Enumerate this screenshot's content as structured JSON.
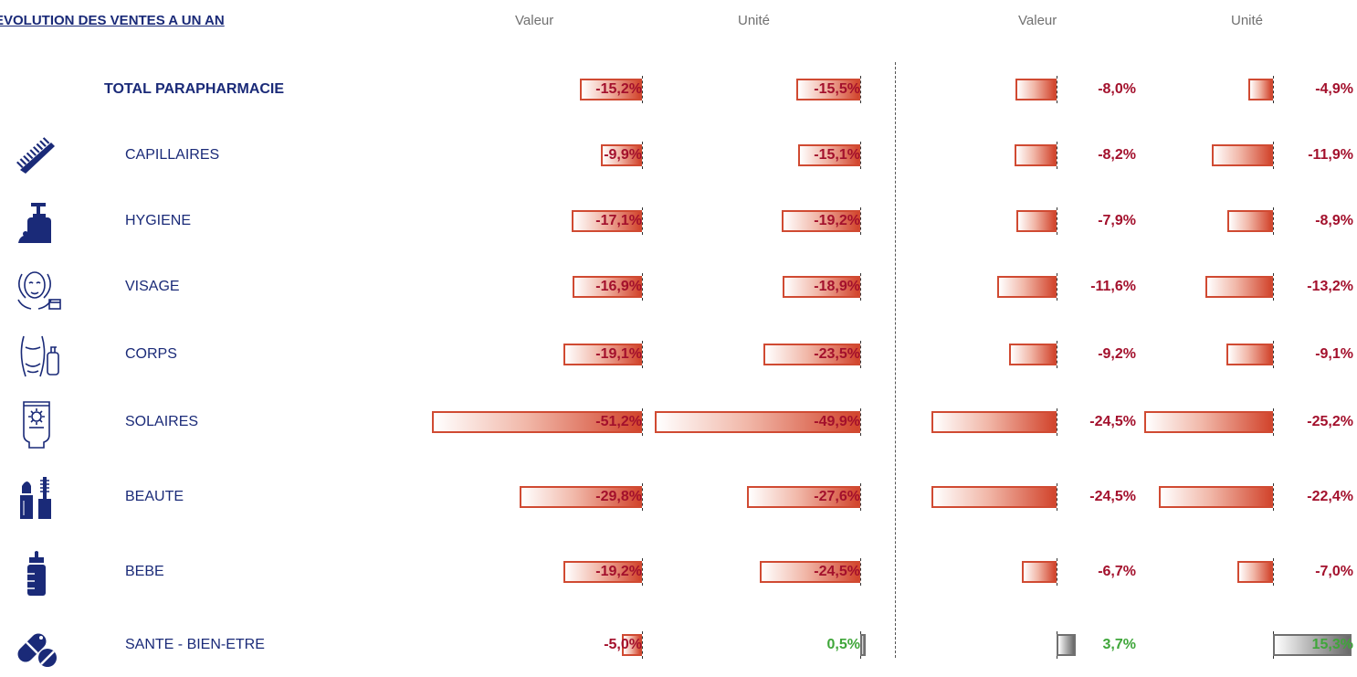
{
  "title": "EVOLUTION DES VENTES A UN AN",
  "columns": [
    "Valeur",
    "Unité",
    "Valeur",
    "Unité"
  ],
  "colors": {
    "label": "#1a2a78",
    "negative_value": "#a3102c",
    "positive_value": "#3fa63a",
    "negative_bar": "#d2452d",
    "positive_bar": "#6a6a6a"
  },
  "chart_data": {
    "type": "bar",
    "orientation": "horizontal",
    "categories": [
      "TOTAL PARAPHARMACIE",
      "CAPILLAIRES",
      "HYGIENE",
      "VISAGE",
      "CORPS",
      "SOLAIRES",
      "BEAUTE",
      "BEBE",
      "SANTE - BIEN-ETRE"
    ],
    "category_icons": [
      "",
      "comb-icon",
      "soap-dispenser-icon",
      "face-cream-icon",
      "body-lotion-icon",
      "sunscreen-icon",
      "lipstick-mascara-icon",
      "baby-bottle-icon",
      "pills-icon"
    ],
    "series": [
      {
        "group": 1,
        "values": [
          -15.2,
          -9.9,
          -17.1,
          -16.9,
          -19.1,
          -51.2,
          -29.8,
          -19.2,
          -5.0
        ],
        "labels": [
          "-15,2%",
          "-9,9%",
          "-17,1%",
          "-16,9%",
          "-19,1%",
          "-51,2%",
          "-29,8%",
          "-19,2%",
          "-5,0%"
        ]
      },
      {
        "group": 1,
        "values": [
          -15.5,
          -15.1,
          -19.2,
          -18.9,
          -23.5,
          -49.9,
          -27.6,
          -24.5,
          0.5
        ],
        "labels": [
          "-15,5%",
          "-15,1%",
          "-19,2%",
          "-18,9%",
          "-23,5%",
          "-49,9%",
          "-27,6%",
          "-24,5%",
          "0,5%"
        ]
      },
      {
        "group": 2,
        "values": [
          -8.0,
          -8.2,
          -7.9,
          -11.6,
          -9.2,
          -24.5,
          -24.5,
          -6.7,
          3.7
        ],
        "labels": [
          "-8,0%",
          "-8,2%",
          "-7,9%",
          "-11,6%",
          "-9,2%",
          "-24,5%",
          "-24,5%",
          "-6,7%",
          "3,7%"
        ]
      },
      {
        "group": 2,
        "values": [
          -4.9,
          -11.9,
          -8.9,
          -13.2,
          -9.1,
          -25.2,
          -22.4,
          -7.0,
          15.3
        ],
        "labels": [
          "-4,9%",
          "-11,9%",
          "-8,9%",
          "-13,2%",
          "-9,1%",
          "-25,2%",
          "-22,4%",
          "-7,0%",
          "15,3%"
        ]
      }
    ]
  }
}
